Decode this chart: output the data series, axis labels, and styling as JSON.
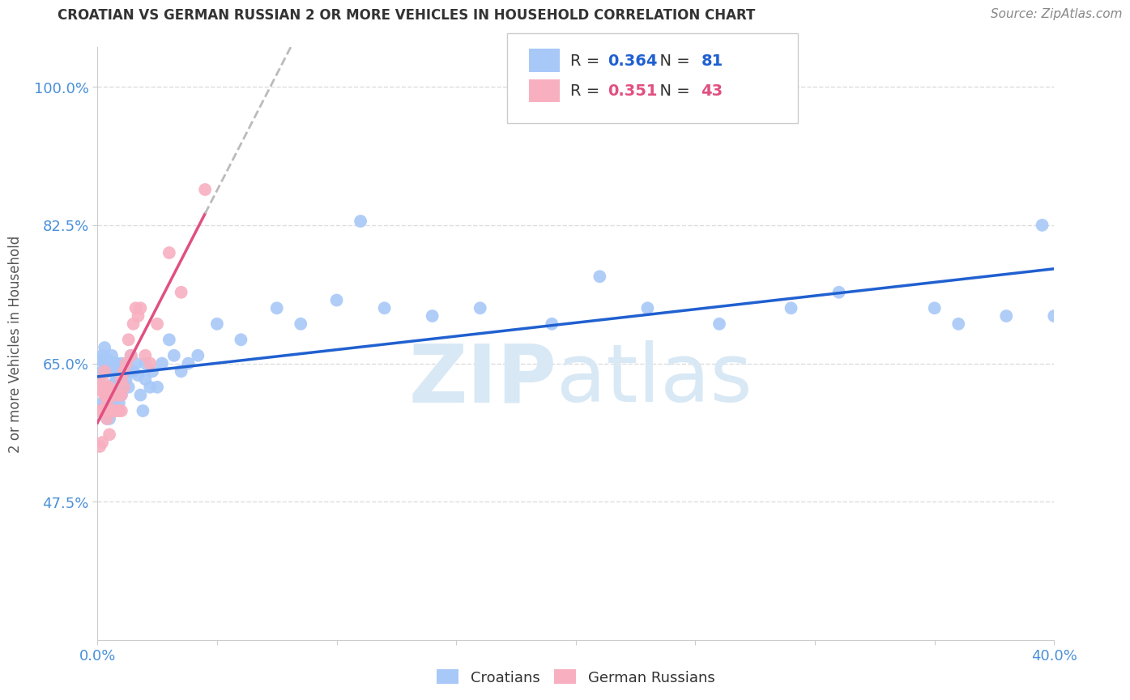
{
  "title": "CROATIAN VS GERMAN RUSSIAN 2 OR MORE VEHICLES IN HOUSEHOLD CORRELATION CHART",
  "source": "Source: ZipAtlas.com",
  "ylabel": "2 or more Vehicles in Household",
  "xlim": [
    0.0,
    0.4
  ],
  "ylim": [
    0.3,
    1.05
  ],
  "yticks": [
    0.475,
    0.65,
    0.825,
    1.0
  ],
  "ytick_labels": [
    "47.5%",
    "65.0%",
    "82.5%",
    "100.0%"
  ],
  "xticks": [
    0.0,
    0.05,
    0.1,
    0.15,
    0.2,
    0.25,
    0.3,
    0.35,
    0.4
  ],
  "xtick_labels": [
    "0.0%",
    "",
    "",
    "",
    "",
    "",
    "",
    "",
    "40.0%"
  ],
  "croatian_color": "#a8c8f8",
  "german_russian_color": "#f8b0c0",
  "trendline_croatian_color": "#2060d0",
  "trendline_german_russian_color": "#e05080",
  "trendline_dashed_color": "#bbbbbb",
  "R_croatian": 0.364,
  "N_croatian": 81,
  "R_german_russian": 0.351,
  "N_german_russian": 43,
  "watermark_zip": "ZIP",
  "watermark_atlas": "atlas",
  "background_color": "#ffffff",
  "grid_color": "#dddddd",
  "label_color": "#4a90d9",
  "croatians_x": [
    0.001,
    0.001,
    0.001,
    0.002,
    0.002,
    0.002,
    0.002,
    0.003,
    0.003,
    0.003,
    0.003,
    0.004,
    0.004,
    0.004,
    0.004,
    0.004,
    0.005,
    0.005,
    0.005,
    0.005,
    0.005,
    0.006,
    0.006,
    0.006,
    0.006,
    0.007,
    0.007,
    0.007,
    0.007,
    0.008,
    0.008,
    0.008,
    0.009,
    0.009,
    0.009,
    0.01,
    0.01,
    0.01,
    0.011,
    0.011,
    0.012,
    0.012,
    0.013,
    0.013,
    0.014,
    0.015,
    0.016,
    0.017,
    0.018,
    0.019,
    0.02,
    0.02,
    0.022,
    0.023,
    0.025,
    0.027,
    0.03,
    0.032,
    0.035,
    0.038,
    0.042,
    0.05,
    0.06,
    0.075,
    0.085,
    0.1,
    0.11,
    0.12,
    0.14,
    0.16,
    0.19,
    0.21,
    0.23,
    0.26,
    0.29,
    0.31,
    0.35,
    0.36,
    0.38,
    0.395,
    0.4
  ],
  "croatians_y": [
    0.635,
    0.59,
    0.655,
    0.62,
    0.64,
    0.6,
    0.66,
    0.62,
    0.65,
    0.67,
    0.6,
    0.615,
    0.64,
    0.58,
    0.61,
    0.655,
    0.61,
    0.64,
    0.62,
    0.65,
    0.58,
    0.6,
    0.62,
    0.64,
    0.66,
    0.605,
    0.625,
    0.6,
    0.65,
    0.615,
    0.63,
    0.65,
    0.6,
    0.62,
    0.64,
    0.61,
    0.63,
    0.65,
    0.62,
    0.64,
    0.63,
    0.65,
    0.62,
    0.64,
    0.66,
    0.64,
    0.65,
    0.635,
    0.61,
    0.59,
    0.63,
    0.65,
    0.62,
    0.64,
    0.62,
    0.65,
    0.68,
    0.66,
    0.64,
    0.65,
    0.66,
    0.7,
    0.68,
    0.72,
    0.7,
    0.73,
    0.83,
    0.72,
    0.71,
    0.72,
    0.7,
    0.76,
    0.72,
    0.7,
    0.72,
    0.74,
    0.72,
    0.7,
    0.71,
    0.825,
    0.71
  ],
  "german_russians_x": [
    0.001,
    0.001,
    0.001,
    0.002,
    0.002,
    0.002,
    0.002,
    0.003,
    0.003,
    0.003,
    0.003,
    0.004,
    0.004,
    0.004,
    0.005,
    0.005,
    0.005,
    0.006,
    0.006,
    0.007,
    0.007,
    0.008,
    0.008,
    0.009,
    0.009,
    0.01,
    0.01,
    0.01,
    0.011,
    0.011,
    0.012,
    0.013,
    0.014,
    0.015,
    0.016,
    0.017,
    0.018,
    0.02,
    0.022,
    0.025,
    0.03,
    0.035,
    0.045
  ],
  "german_russians_y": [
    0.59,
    0.545,
    0.62,
    0.63,
    0.59,
    0.615,
    0.55,
    0.64,
    0.61,
    0.59,
    0.62,
    0.62,
    0.58,
    0.6,
    0.61,
    0.62,
    0.56,
    0.61,
    0.59,
    0.61,
    0.59,
    0.61,
    0.59,
    0.61,
    0.59,
    0.61,
    0.59,
    0.63,
    0.62,
    0.64,
    0.65,
    0.68,
    0.66,
    0.7,
    0.72,
    0.71,
    0.72,
    0.66,
    0.65,
    0.7,
    0.79,
    0.74,
    0.87
  ],
  "trendline_gr_end_solid": 0.045,
  "trendline_gr_start_dashed": 0.045,
  "trendline_gr_end_dashed": 0.4
}
